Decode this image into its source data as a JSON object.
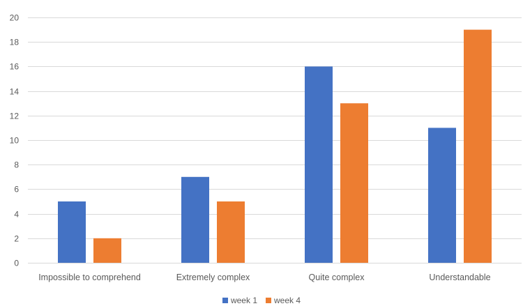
{
  "chart_data": {
    "type": "bar",
    "categories": [
      "Impossible to comprehend",
      "Extremely complex",
      "Quite complex",
      "Understandable"
    ],
    "series": [
      {
        "name": "week 1",
        "values": [
          5,
          7,
          16,
          11
        ],
        "color": "#4472C4"
      },
      {
        "name": "week 4",
        "values": [
          2,
          5,
          13,
          19
        ],
        "color": "#ED7D31"
      }
    ],
    "ylim": [
      0,
      20
    ],
    "y_ticks": [
      0,
      2,
      4,
      6,
      8,
      10,
      12,
      14,
      16,
      18,
      20
    ],
    "grid": true,
    "gridline_color": "#D9D9D9",
    "legend_position": "bottom"
  }
}
